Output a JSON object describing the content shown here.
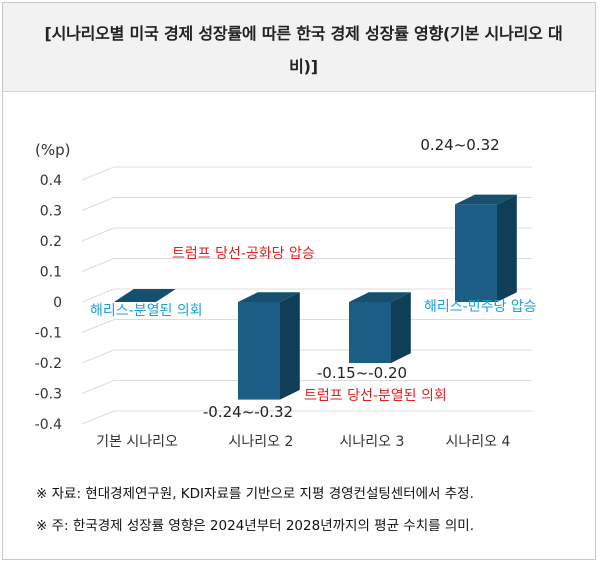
{
  "header": {
    "title": "[시나리오별 미국 경제 성장률에 따른 한국 경제 성장률 영향(기본 시나리오 대비)]"
  },
  "chart_data": {
    "type": "bar",
    "unit_label": "(%p)",
    "categories": [
      "기본 시나리오",
      "시나리오 2",
      "시나리오 3",
      "시나리오 4"
    ],
    "values": [
      0,
      -0.32,
      -0.2,
      0.32
    ],
    "ylim": [
      -0.4,
      0.4
    ],
    "yticks": [
      0.4,
      0.3,
      0.2,
      0.1,
      0,
      -0.1,
      -0.2,
      -0.3,
      -0.4
    ],
    "grid": true,
    "value_labels": [
      "",
      "-0.24~-0.32",
      "-0.15~-0.20",
      "0.24~0.32"
    ],
    "annotations": {
      "red_top": "트럼프 당선-공화당 압승",
      "blue_left": "해리스-분열된 의회",
      "red_bottom": "트럼프 당선-분열된 의회",
      "blue_right": "해리스-민주당 압승"
    },
    "colors": {
      "bar_front": "#1b5d84",
      "bar_side": "#0f3e58",
      "bar_top": "#17506f",
      "red_text": "#e11f1f",
      "blue_text": "#1aa0d8"
    }
  },
  "notes": {
    "source": "※ 자료: 현대경제연구원, KDI자료를 기반으로 지평 경영컨설팅센터에서 추정.",
    "remark": "※ 주: 한국경제 성장률 영향은 2024년부터 2028년까지의 평균 수치를 의미."
  }
}
